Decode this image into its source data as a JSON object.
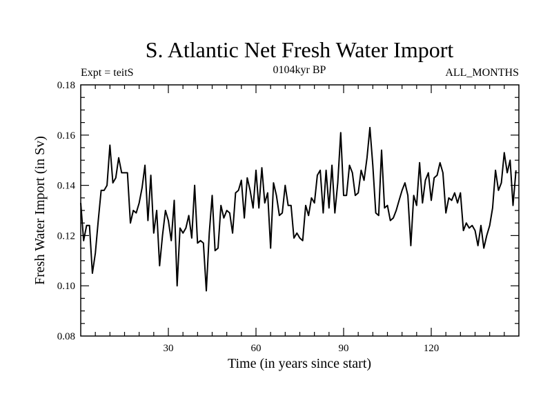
{
  "chart_data": {
    "type": "line",
    "title": "S. Atlantic Net Fresh Water Import",
    "expt_label": "Expt = teitS",
    "period_label": "0104kyr BP",
    "months_label": "ALL_MONTHS",
    "xlabel": "Time (in years since start)",
    "ylabel": "Fresh Water Import (in Sv)",
    "xlim": [
      0,
      150
    ],
    "ylim": [
      0.08,
      0.18
    ],
    "x_ticks": [
      30,
      60,
      90,
      120
    ],
    "x_tick_labels": [
      "30",
      "60",
      "90",
      "120"
    ],
    "y_ticks": [
      0.08,
      0.1,
      0.12,
      0.14,
      0.16,
      0.18
    ],
    "y_tick_labels": [
      "0.08",
      "0.10",
      "0.12",
      "0.14",
      "0.16",
      "0.18"
    ],
    "series": [
      {
        "name": "Net Fresh Water Import",
        "color": "#000000",
        "x": [
          0,
          1,
          2,
          3,
          4,
          5,
          6,
          7,
          8,
          9,
          10,
          11,
          12,
          13,
          14,
          15,
          16,
          17,
          18,
          19,
          20,
          21,
          22,
          23,
          24,
          25,
          26,
          27,
          28,
          29,
          30,
          31,
          32,
          33,
          34,
          35,
          36,
          37,
          38,
          39,
          40,
          41,
          42,
          43,
          44,
          45,
          46,
          47,
          48,
          49,
          50,
          51,
          52,
          53,
          54,
          55,
          56,
          57,
          58,
          59,
          60,
          61,
          62,
          63,
          64,
          65,
          66,
          67,
          68,
          69,
          70,
          71,
          72,
          73,
          74,
          75,
          76,
          77,
          78,
          79,
          80,
          81,
          82,
          83,
          84,
          85,
          86,
          87,
          88,
          89,
          90,
          91,
          92,
          93,
          94,
          95,
          96,
          97,
          98,
          99,
          100,
          101,
          102,
          103,
          104,
          105,
          106,
          107,
          108,
          109,
          110,
          111,
          112,
          113,
          114,
          115,
          116,
          117,
          118,
          119,
          120,
          121,
          122,
          123,
          124,
          125,
          126,
          127,
          128,
          129,
          130,
          131,
          132,
          133,
          134,
          135,
          136,
          137,
          138,
          139,
          140,
          141,
          142,
          143,
          144,
          145,
          146,
          147,
          148,
          149
        ],
        "values": [
          0.133,
          0.118,
          0.124,
          0.124,
          0.105,
          0.113,
          0.126,
          0.138,
          0.138,
          0.14,
          0.156,
          0.141,
          0.143,
          0.151,
          0.145,
          0.145,
          0.145,
          0.125,
          0.13,
          0.129,
          0.133,
          0.139,
          0.148,
          0.126,
          0.144,
          0.121,
          0.13,
          0.108,
          0.12,
          0.13,
          0.126,
          0.118,
          0.134,
          0.1,
          0.123,
          0.121,
          0.123,
          0.128,
          0.119,
          0.14,
          0.117,
          0.118,
          0.117,
          0.098,
          0.121,
          0.136,
          0.114,
          0.115,
          0.132,
          0.127,
          0.13,
          0.129,
          0.121,
          0.137,
          0.138,
          0.142,
          0.127,
          0.143,
          0.138,
          0.131,
          0.146,
          0.131,
          0.147,
          0.133,
          0.137,
          0.115,
          0.141,
          0.136,
          0.128,
          0.129,
          0.14,
          0.132,
          0.132,
          0.119,
          0.121,
          0.119,
          0.118,
          0.132,
          0.128,
          0.135,
          0.133,
          0.144,
          0.146,
          0.129,
          0.146,
          0.131,
          0.148,
          0.129,
          0.141,
          0.161,
          0.136,
          0.136,
          0.148,
          0.145,
          0.136,
          0.137,
          0.146,
          0.142,
          0.151,
          0.163,
          0.148,
          0.129,
          0.128,
          0.154,
          0.131,
          0.132,
          0.126,
          0.127,
          0.13,
          0.134,
          0.138,
          0.141,
          0.136,
          0.116,
          0.136,
          0.132,
          0.149,
          0.133,
          0.142,
          0.145,
          0.134,
          0.143,
          0.144,
          0.149,
          0.145,
          0.129,
          0.135,
          0.134,
          0.137,
          0.133,
          0.137,
          0.122,
          0.125,
          0.123,
          0.124,
          0.122,
          0.116,
          0.124,
          0.115,
          0.12,
          0.124,
          0.131,
          0.146,
          0.138,
          0.141,
          0.153,
          0.145,
          0.15,
          0.132,
          0.146
        ]
      }
    ]
  }
}
